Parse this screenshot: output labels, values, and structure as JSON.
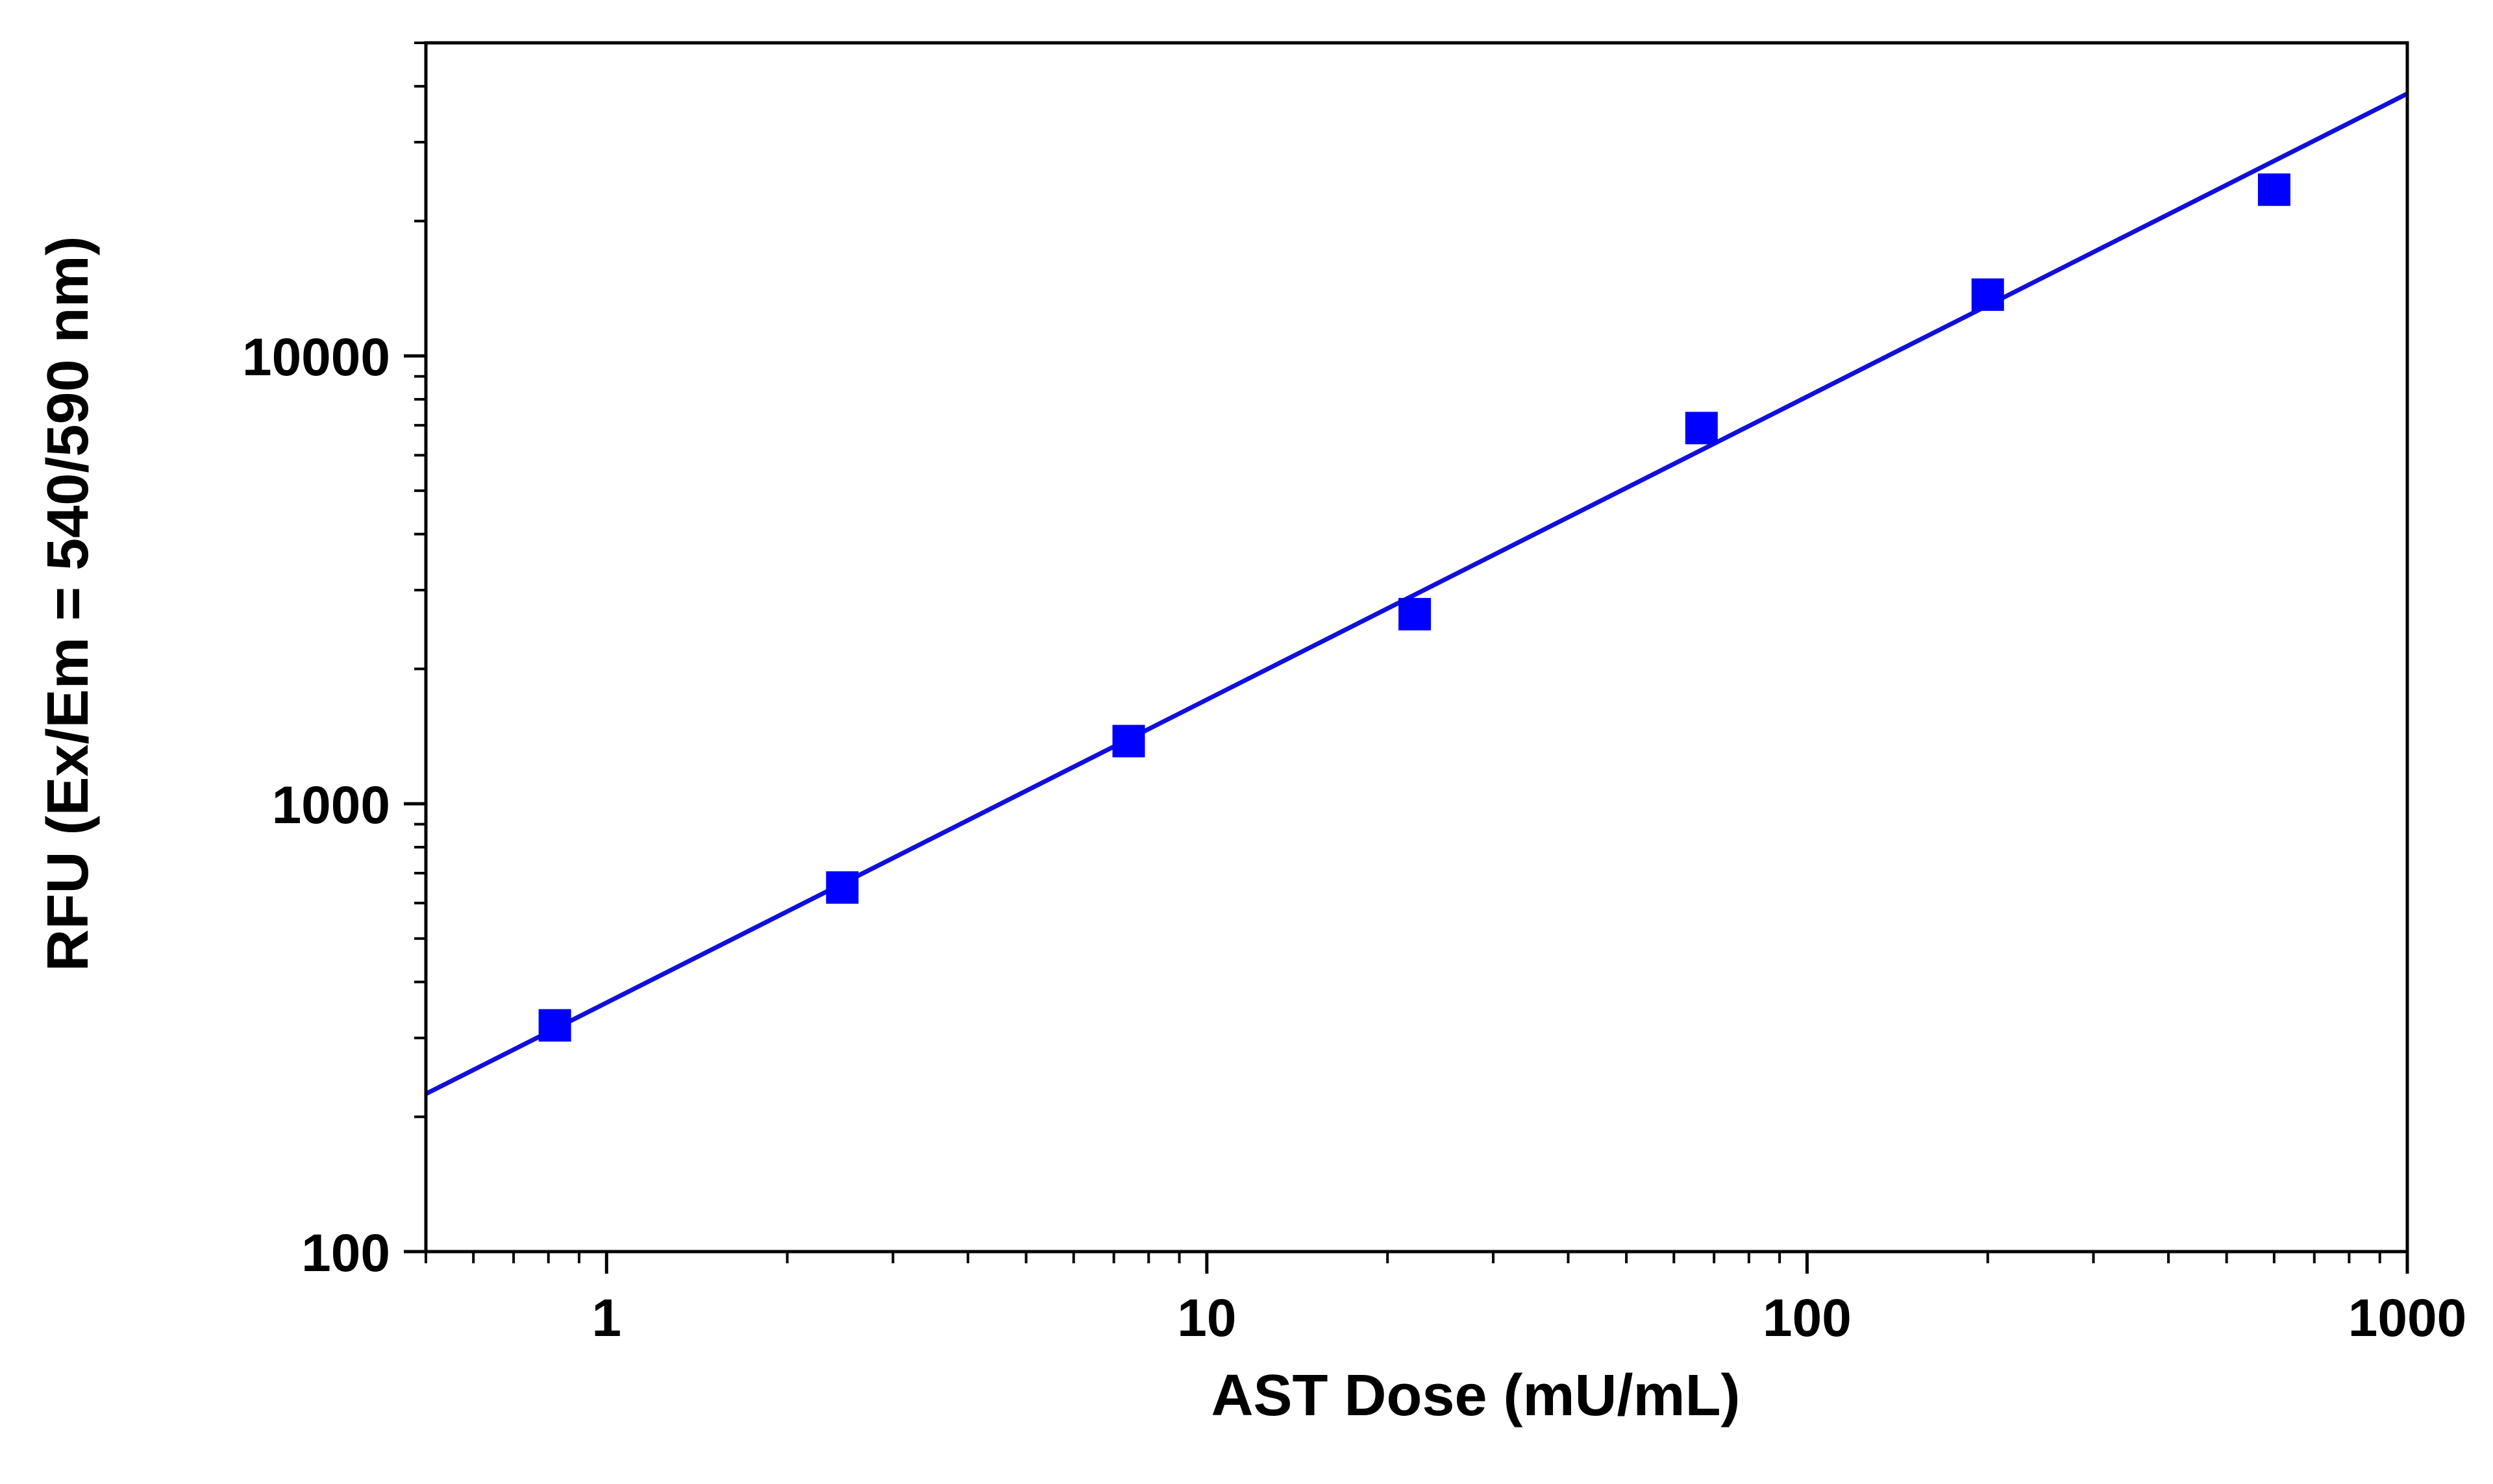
{
  "chart_data": {
    "type": "scatter",
    "title": "",
    "xlabel": "AST Dose (mU/mL)",
    "ylabel": "RFU (Ex/Em = 540/590 nm)",
    "xscale": "log",
    "yscale": "log",
    "xlim": [
      0.5,
      1000
    ],
    "ylim": [
      100,
      50000
    ],
    "xticks": [
      1,
      10,
      100,
      1000
    ],
    "xtick_labels": [
      "1",
      "10",
      "100",
      "1000"
    ],
    "yticks": [
      100,
      1000,
      10000
    ],
    "ytick_labels": [
      "100",
      "1000",
      "10000"
    ],
    "grid": false,
    "legend": "none",
    "marker": "square",
    "series": [
      {
        "x": [
          0.82,
          2.47,
          7.41,
          22.2,
          66.7,
          200,
          600
        ],
        "y": [
          320,
          650,
          1380,
          2650,
          6900,
          13700,
          23500
        ]
      }
    ],
    "fit_line": {
      "x": [
        0.5,
        1000
      ],
      "y": [
        225,
        38500
      ]
    },
    "colors": {
      "series": "#0000ff",
      "fit": "#1010dd",
      "axes": "#000000"
    }
  }
}
